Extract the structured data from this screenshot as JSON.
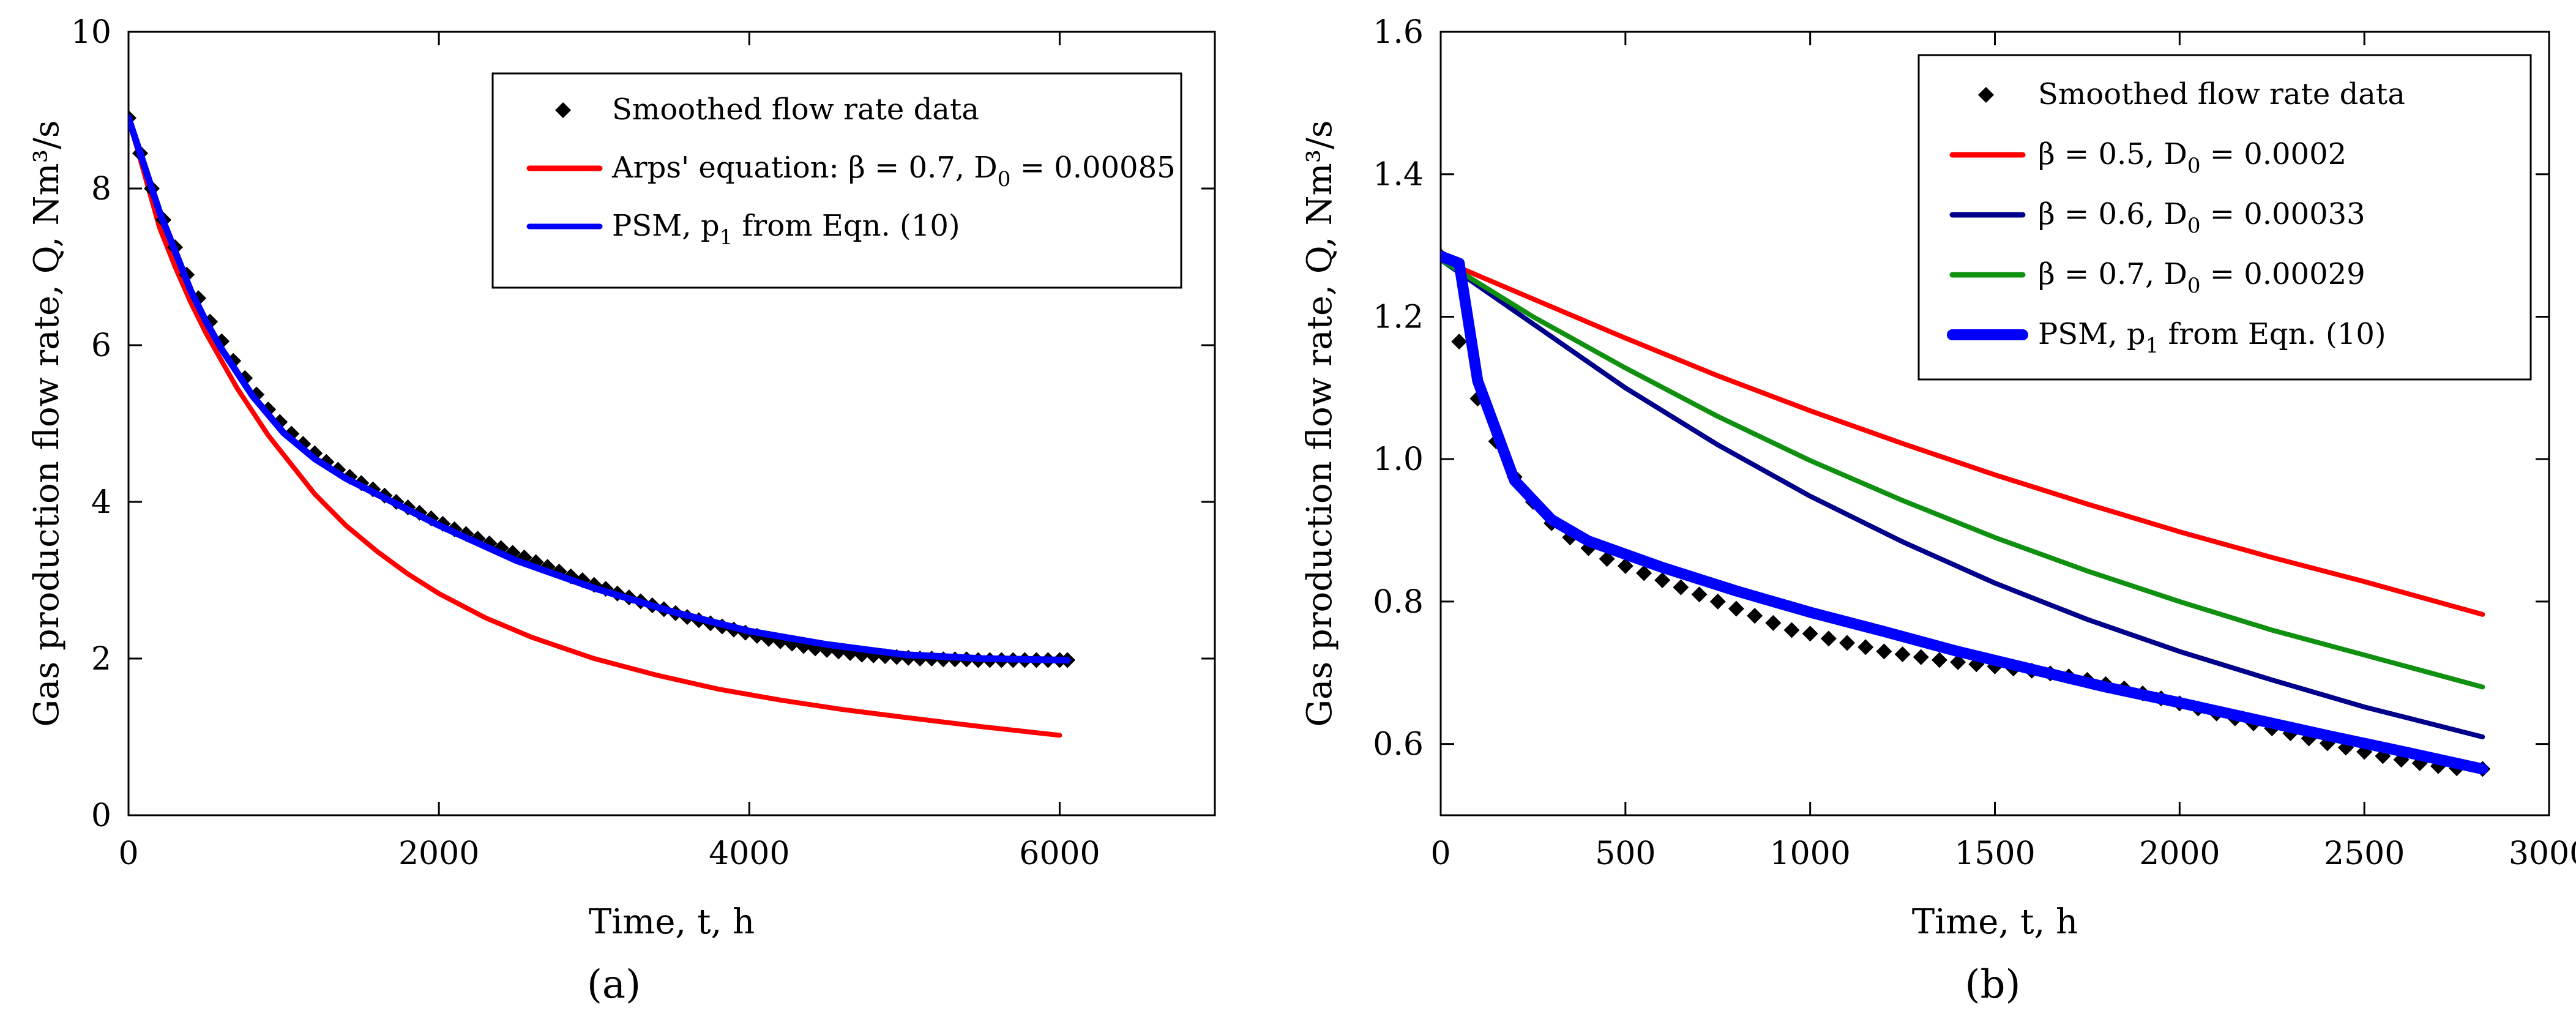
{
  "chart_data": [
    {
      "type": "line",
      "panel_label": "(a)",
      "xlabel": "Time, t, h",
      "ylabel": "Gas production flow rate, Q, Nm³/s",
      "xlim": [
        0,
        7000
      ],
      "ylim": [
        0,
        10
      ],
      "xticks": [
        "0",
        "2000",
        "4000",
        "6000"
      ],
      "yticks": [
        "0",
        "2",
        "4",
        "6",
        "8",
        "10"
      ],
      "grid": false,
      "legend_position": "top-right",
      "series": [
        {
          "name": "Smoothed flow rate data",
          "style": "markers",
          "color": "#000000",
          "x": [
            0,
            75,
            150,
            225,
            300,
            375,
            450,
            525,
            600,
            675,
            750,
            825,
            900,
            975,
            1050,
            1125,
            1200,
            1275,
            1350,
            1425,
            1500,
            1575,
            1650,
            1725,
            1800,
            1875,
            1950,
            2025,
            2100,
            2175,
            2250,
            2325,
            2400,
            2475,
            2550,
            2625,
            2700,
            2775,
            2850,
            2925,
            3000,
            3075,
            3150,
            3225,
            3300,
            3375,
            3450,
            3525,
            3600,
            3675,
            3750,
            3825,
            3900,
            3975,
            4050,
            4125,
            4200,
            4275,
            4350,
            4425,
            4500,
            4575,
            4650,
            4725,
            4800,
            4875,
            4950,
            5025,
            5100,
            5175,
            5250,
            5325,
            5400,
            5475,
            5550,
            5625,
            5700,
            5775,
            5850,
            5925,
            6000,
            6050
          ],
          "y": [
            8.9,
            8.45,
            8.0,
            7.6,
            7.25,
            6.9,
            6.6,
            6.3,
            6.05,
            5.8,
            5.58,
            5.37,
            5.18,
            5.02,
            4.87,
            4.74,
            4.62,
            4.51,
            4.41,
            4.32,
            4.24,
            4.16,
            4.08,
            4.0,
            3.93,
            3.86,
            3.79,
            3.72,
            3.65,
            3.59,
            3.53,
            3.47,
            3.41,
            3.35,
            3.29,
            3.23,
            3.17,
            3.11,
            3.05,
            3.0,
            2.94,
            2.89,
            2.83,
            2.78,
            2.73,
            2.68,
            2.63,
            2.58,
            2.53,
            2.49,
            2.45,
            2.41,
            2.37,
            2.33,
            2.29,
            2.25,
            2.22,
            2.19,
            2.16,
            2.13,
            2.11,
            2.09,
            2.07,
            2.05,
            2.04,
            2.03,
            2.02,
            2.01,
            2.0,
            2.0,
            1.99,
            1.99,
            1.99,
            1.98,
            1.98,
            1.98,
            1.98,
            1.98,
            1.98,
            1.98,
            1.98,
            1.98
          ]
        },
        {
          "name": "Arps' equation: β = 0.7, D₀ = 0.00085",
          "legend_main": "Arps' equation: β = 0.7, D",
          "legend_sub": "0",
          "legend_tail": " = 0.00085",
          "style": "line",
          "color": "#ff0000",
          "x": [
            0,
            100,
            200,
            300,
            400,
            500,
            600,
            700,
            800,
            900,
            1000,
            1200,
            1400,
            1600,
            1800,
            2000,
            2300,
            2600,
            3000,
            3400,
            3800,
            4200,
            4600,
            5000,
            5500,
            6000
          ],
          "y": [
            8.9,
            8.2,
            7.5,
            7.0,
            6.55,
            6.15,
            5.8,
            5.45,
            5.15,
            4.85,
            4.6,
            4.1,
            3.7,
            3.37,
            3.08,
            2.83,
            2.52,
            2.27,
            2.0,
            1.79,
            1.61,
            1.47,
            1.35,
            1.25,
            1.13,
            1.02
          ]
        },
        {
          "name": "PSM, p₁ from Eqn. (10)",
          "legend_main": "PSM, p",
          "legend_sub": "1",
          "legend_tail": " from Eqn. (10)",
          "style": "line",
          "color": "#0000ff",
          "x": [
            0,
            100,
            200,
            300,
            400,
            500,
            600,
            800,
            1000,
            1200,
            1400,
            1600,
            2000,
            2500,
            3000,
            3500,
            4000,
            4500,
            5000,
            5500,
            6050
          ],
          "y": [
            8.9,
            8.3,
            7.7,
            7.2,
            6.7,
            6.3,
            5.95,
            5.35,
            4.88,
            4.55,
            4.3,
            4.1,
            3.7,
            3.25,
            2.9,
            2.6,
            2.35,
            2.18,
            2.05,
            2.0,
            1.98
          ]
        }
      ]
    },
    {
      "type": "line",
      "panel_label": "(b)",
      "xlabel": "Time, t, h",
      "ylabel": "Gas production flow rate, Q, Nm³/s",
      "xlim": [
        0,
        3000
      ],
      "ylim": [
        0.5,
        1.6
      ],
      "xticks": [
        "0",
        "500",
        "1000",
        "1500",
        "2000",
        "2500",
        "3000"
      ],
      "yticks": [
        "0.6",
        "0.8",
        "1.0",
        "1.2",
        "1.4",
        "1.6"
      ],
      "grid": false,
      "legend_position": "top-right",
      "series": [
        {
          "name": "Smoothed flow rate data",
          "style": "markers",
          "color": "#000000",
          "x": [
            0,
            50,
            100,
            150,
            200,
            250,
            300,
            350,
            400,
            450,
            500,
            550,
            600,
            650,
            700,
            750,
            800,
            850,
            900,
            950,
            1000,
            1050,
            1100,
            1150,
            1200,
            1250,
            1300,
            1350,
            1400,
            1450,
            1500,
            1550,
            1600,
            1650,
            1700,
            1750,
            1800,
            1850,
            1900,
            1950,
            2000,
            2050,
            2100,
            2150,
            2200,
            2250,
            2300,
            2350,
            2400,
            2450,
            2500,
            2550,
            2600,
            2650,
            2700,
            2750,
            2820
          ],
          "y": [
            1.285,
            1.165,
            1.085,
            1.025,
            0.975,
            0.94,
            0.91,
            0.89,
            0.875,
            0.86,
            0.85,
            0.84,
            0.83,
            0.82,
            0.81,
            0.8,
            0.79,
            0.78,
            0.77,
            0.76,
            0.755,
            0.748,
            0.742,
            0.736,
            0.73,
            0.726,
            0.722,
            0.718,
            0.715,
            0.712,
            0.709,
            0.706,
            0.703,
            0.699,
            0.695,
            0.69,
            0.684,
            0.678,
            0.671,
            0.664,
            0.657,
            0.65,
            0.643,
            0.636,
            0.629,
            0.622,
            0.615,
            0.608,
            0.601,
            0.595,
            0.589,
            0.583,
            0.578,
            0.573,
            0.569,
            0.566,
            0.565
          ]
        },
        {
          "name": "β = 0.5, D₀ = 0.0002",
          "legend_main": "β = 0.5, D",
          "legend_sub": "0",
          "legend_tail": " = 0.0002",
          "style": "line",
          "color": "#ff0000",
          "x": [
            0,
            250,
            500,
            750,
            1000,
            1250,
            1500,
            1750,
            2000,
            2250,
            2500,
            2820
          ],
          "y": [
            1.28,
            1.225,
            1.17,
            1.117,
            1.068,
            1.022,
            0.978,
            0.937,
            0.898,
            0.862,
            0.828,
            0.782
          ]
        },
        {
          "name": "β = 0.6, D₀ = 0.00033",
          "legend_main": "β = 0.6, D",
          "legend_sub": "0",
          "legend_tail": " = 0.00033",
          "style": "line",
          "color": "#00008b",
          "x": [
            0,
            250,
            500,
            750,
            1000,
            1250,
            1500,
            1750,
            2000,
            2250,
            2500,
            2820
          ],
          "y": [
            1.28,
            1.19,
            1.1,
            1.02,
            0.948,
            0.884,
            0.826,
            0.775,
            0.73,
            0.69,
            0.652,
            0.61
          ]
        },
        {
          "name": "β = 0.7, D₀ = 0.00029",
          "legend_main": "β = 0.7, D",
          "legend_sub": "0",
          "legend_tail": " = 0.00029",
          "style": "line",
          "color": "#109010",
          "x": [
            0,
            250,
            500,
            750,
            1000,
            1250,
            1500,
            1750,
            2000,
            2250,
            2500,
            2820
          ],
          "y": [
            1.28,
            1.2,
            1.128,
            1.06,
            0.998,
            0.942,
            0.89,
            0.843,
            0.8,
            0.76,
            0.725,
            0.68
          ]
        },
        {
          "name": "PSM, p₁ from Eqn. (10)",
          "legend_main": "PSM, p",
          "legend_sub": "1",
          "legend_tail": " from Eqn. (10)",
          "style": "line-thick",
          "color": "#0000ff",
          "x": [
            0,
            50,
            100,
            150,
            200,
            300,
            400,
            600,
            800,
            1000,
            1200,
            1400,
            1600,
            1800,
            2000,
            2200,
            2400,
            2600,
            2820
          ],
          "y": [
            1.285,
            1.275,
            1.11,
            1.04,
            0.97,
            0.915,
            0.885,
            0.848,
            0.815,
            0.785,
            0.758,
            0.73,
            0.705,
            0.68,
            0.658,
            0.635,
            0.612,
            0.59,
            0.565
          ]
        }
      ]
    }
  ]
}
